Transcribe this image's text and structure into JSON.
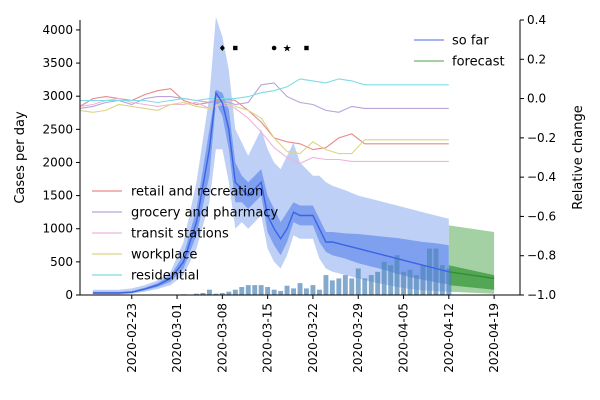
{
  "chart_data": {
    "type": "line",
    "ylabel_left": "Cases per day",
    "ylabel_right": "Relative change",
    "left_ylim": [
      0,
      4150
    ],
    "right_ylim": [
      -1.0,
      0.4
    ],
    "left_yticks": [
      0,
      500,
      1000,
      1500,
      2000,
      2500,
      3000,
      3500,
      4000
    ],
    "right_yticks": [
      -1.0,
      -0.8,
      -0.6,
      -0.4,
      -0.2,
      0.0,
      0.2,
      0.4
    ],
    "right_ytick_labels": [
      "−1.0",
      "−0.8",
      "−0.6",
      "−0.4",
      "−0.2",
      "0.0",
      "0.2",
      "0.4"
    ],
    "xticks": [
      "2020-02-23",
      "2020-03-01",
      "2020-03-08",
      "2020-03-15",
      "2020-03-22",
      "2020-03-29",
      "2020-04-05",
      "2020-04-12",
      "2020-04-19"
    ],
    "x_start": "2020-02-15",
    "mobility_legend": [
      {
        "name": "retail and recreation",
        "color": "#e88a8a"
      },
      {
        "name": "grocery and pharmacy",
        "color": "#b9a3d8"
      },
      {
        "name": "transit stations",
        "color": "#efb4dc"
      },
      {
        "name": "workplace",
        "color": "#dcd585"
      },
      {
        "name": "residential",
        "color": "#7fdbe8"
      }
    ],
    "model_legend": [
      {
        "name": "so far",
        "color": "#6f86ee"
      },
      {
        "name": "forecast",
        "color": "#6eb46e"
      }
    ],
    "mobility": {
      "dates": [
        "2020-02-15",
        "2020-02-17",
        "2020-02-19",
        "2020-02-21",
        "2020-02-23",
        "2020-02-25",
        "2020-02-27",
        "2020-02-29",
        "2020-03-02",
        "2020-03-04",
        "2020-03-06",
        "2020-03-08",
        "2020-03-10",
        "2020-03-12",
        "2020-03-14",
        "2020-03-16",
        "2020-03-18",
        "2020-03-20",
        "2020-03-22",
        "2020-03-24",
        "2020-03-26",
        "2020-03-28",
        "2020-03-30",
        "2020-04-01",
        "2020-04-03",
        "2020-04-05",
        "2020-04-07",
        "2020-04-09",
        "2020-04-11",
        "2020-04-12"
      ],
      "retail and recreation": [
        -0.04,
        0.0,
        0.01,
        0.0,
        -0.01,
        0.02,
        0.04,
        0.05,
        -0.01,
        -0.03,
        -0.02,
        0.0,
        -0.01,
        -0.06,
        -0.12,
        -0.2,
        -0.22,
        -0.23,
        -0.26,
        -0.25,
        -0.2,
        -0.18,
        -0.23,
        -0.23,
        -0.23,
        -0.23,
        -0.23,
        -0.23,
        -0.23,
        -0.23
      ],
      "grocery and pharmacy": [
        -0.05,
        -0.04,
        -0.02,
        -0.01,
        -0.03,
        0.0,
        0.01,
        0.01,
        0.0,
        -0.01,
        -0.02,
        -0.01,
        -0.03,
        -0.02,
        0.07,
        0.08,
        0.01,
        -0.02,
        -0.03,
        -0.06,
        -0.07,
        -0.04,
        -0.05,
        -0.05,
        -0.05,
        -0.05,
        -0.05,
        -0.05,
        -0.05,
        -0.05
      ],
      "transit stations": [
        -0.04,
        -0.03,
        -0.01,
        0.0,
        -0.02,
        -0.03,
        -0.04,
        -0.03,
        -0.03,
        -0.02,
        -0.05,
        -0.03,
        -0.05,
        -0.1,
        -0.17,
        -0.25,
        -0.3,
        -0.33,
        -0.3,
        -0.31,
        -0.31,
        -0.32,
        -0.32,
        -0.32,
        -0.32,
        -0.32,
        -0.32,
        -0.32,
        -0.32,
        -0.32
      ],
      "workplace": [
        -0.06,
        -0.07,
        -0.06,
        -0.03,
        -0.04,
        -0.05,
        -0.06,
        -0.03,
        -0.02,
        -0.04,
        -0.05,
        -0.02,
        -0.04,
        -0.06,
        -0.1,
        -0.2,
        -0.27,
        -0.28,
        -0.22,
        -0.26,
        -0.28,
        -0.28,
        -0.21,
        -0.21,
        -0.21,
        -0.21,
        -0.21,
        -0.21,
        -0.21,
        -0.21
      ],
      "residential": [
        -0.01,
        -0.01,
        -0.01,
        -0.01,
        -0.01,
        -0.01,
        -0.02,
        -0.01,
        0.0,
        -0.01,
        0.0,
        0.0,
        0.0,
        0.01,
        0.03,
        0.04,
        0.06,
        0.1,
        0.09,
        0.08,
        0.1,
        0.09,
        0.07,
        0.07,
        0.07,
        0.07,
        0.07,
        0.07,
        0.07,
        0.07
      ]
    },
    "so_far": {
      "dates": [
        "2020-02-17",
        "2020-02-19",
        "2020-02-21",
        "2020-02-23",
        "2020-02-25",
        "2020-02-27",
        "2020-02-29",
        "2020-03-02",
        "2020-03-04",
        "2020-03-06",
        "2020-03-07",
        "2020-03-08",
        "2020-03-09",
        "2020-03-10",
        "2020-03-11",
        "2020-03-12",
        "2020-03-13",
        "2020-03-14",
        "2020-03-15",
        "2020-03-16",
        "2020-03-17",
        "2020-03-18",
        "2020-03-19",
        "2020-03-20",
        "2020-03-21",
        "2020-03-22",
        "2020-03-23",
        "2020-03-24",
        "2020-03-25",
        "2020-03-27",
        "2020-03-29",
        "2020-03-31",
        "2020-04-02",
        "2020-04-04",
        "2020-04-06",
        "2020-04-08",
        "2020-04-10",
        "2020-04-12"
      ],
      "median": [
        30,
        30,
        30,
        40,
        90,
        150,
        250,
        500,
        1100,
        2200,
        3050,
        2900,
        2500,
        1700,
        1600,
        1500,
        1600,
        1700,
        1200,
        1000,
        850,
        1000,
        1250,
        1200,
        1200,
        1200,
        1000,
        800,
        800,
        750,
        700,
        650,
        600,
        550,
        500,
        450,
        400,
        350
      ],
      "inner_low": [
        20,
        20,
        20,
        30,
        70,
        120,
        200,
        400,
        900,
        1800,
        2900,
        2700,
        2200,
        1400,
        1400,
        1300,
        1400,
        1500,
        950,
        750,
        600,
        800,
        1100,
        1050,
        1050,
        1050,
        800,
        650,
        600,
        550,
        480,
        430,
        380,
        320,
        270,
        230,
        190,
        160
      ],
      "inner_high": [
        50,
        50,
        50,
        60,
        110,
        180,
        300,
        600,
        1300,
        2500,
        3100,
        3050,
        2800,
        2000,
        1800,
        1700,
        1800,
        1900,
        1500,
        1300,
        1100,
        1250,
        1400,
        1350,
        1350,
        1350,
        1150,
        950,
        950,
        930,
        920,
        900,
        880,
        860,
        830,
        800,
        780,
        750
      ],
      "outer_low": [
        10,
        10,
        10,
        20,
        50,
        90,
        150,
        300,
        700,
        1400,
        2200,
        2200,
        1700,
        1000,
        1100,
        1000,
        1100,
        1200,
        700,
        500,
        400,
        600,
        900,
        850,
        850,
        850,
        550,
        400,
        350,
        300,
        250,
        200,
        160,
        120,
        90,
        70,
        60,
        50
      ],
      "outer_high": [
        80,
        80,
        80,
        100,
        150,
        220,
        350,
        800,
        1700,
        3000,
        4200,
        3900,
        3400,
        2500,
        2300,
        2100,
        2300,
        2500,
        2200,
        2000,
        1900,
        2100,
        2300,
        2000,
        1900,
        1800,
        1800,
        1700,
        1650,
        1580,
        1500,
        1450,
        1400,
        1350,
        1300,
        1250,
        1200,
        1150
      ]
    },
    "forecast": {
      "dates": [
        "2020-04-12",
        "2020-04-19"
      ],
      "median": [
        350,
        250
      ],
      "inner_low": [
        150,
        80
      ],
      "inner_high": [
        450,
        300
      ],
      "outer_low": [
        50,
        20
      ],
      "outer_high": [
        1050,
        950
      ]
    },
    "observed_bars": {
      "dates": [
        "2020-02-17",
        "2020-02-19",
        "2020-02-21",
        "2020-02-23",
        "2020-02-25",
        "2020-02-27",
        "2020-02-29",
        "2020-03-02",
        "2020-03-04",
        "2020-03-05",
        "2020-03-06",
        "2020-03-07",
        "2020-03-08",
        "2020-03-09",
        "2020-03-10",
        "2020-03-11",
        "2020-03-12",
        "2020-03-13",
        "2020-03-14",
        "2020-03-15",
        "2020-03-16",
        "2020-03-17",
        "2020-03-18",
        "2020-03-19",
        "2020-03-20",
        "2020-03-21",
        "2020-03-22",
        "2020-03-23",
        "2020-03-24",
        "2020-03-25",
        "2020-03-26",
        "2020-03-27",
        "2020-03-28",
        "2020-03-29",
        "2020-03-30",
        "2020-03-31",
        "2020-04-01",
        "2020-04-02",
        "2020-04-03",
        "2020-04-04",
        "2020-04-05",
        "2020-04-06",
        "2020-04-07",
        "2020-04-08",
        "2020-04-09",
        "2020-04-10",
        "2020-04-11",
        "2020-04-12"
      ],
      "values": [
        0,
        0,
        0,
        0,
        0,
        0,
        5,
        10,
        20,
        30,
        80,
        20,
        30,
        50,
        80,
        120,
        150,
        150,
        150,
        120,
        80,
        60,
        140,
        100,
        180,
        100,
        150,
        80,
        300,
        220,
        250,
        300,
        250,
        400,
        250,
        300,
        350,
        500,
        450,
        600,
        350,
        380,
        300,
        450,
        700,
        700,
        450,
        400
      ]
    },
    "intervention_markers": [
      "2020-03-08",
      "2020-03-10",
      "2020-03-16",
      "2020-03-18",
      "2020-03-21"
    ]
  }
}
